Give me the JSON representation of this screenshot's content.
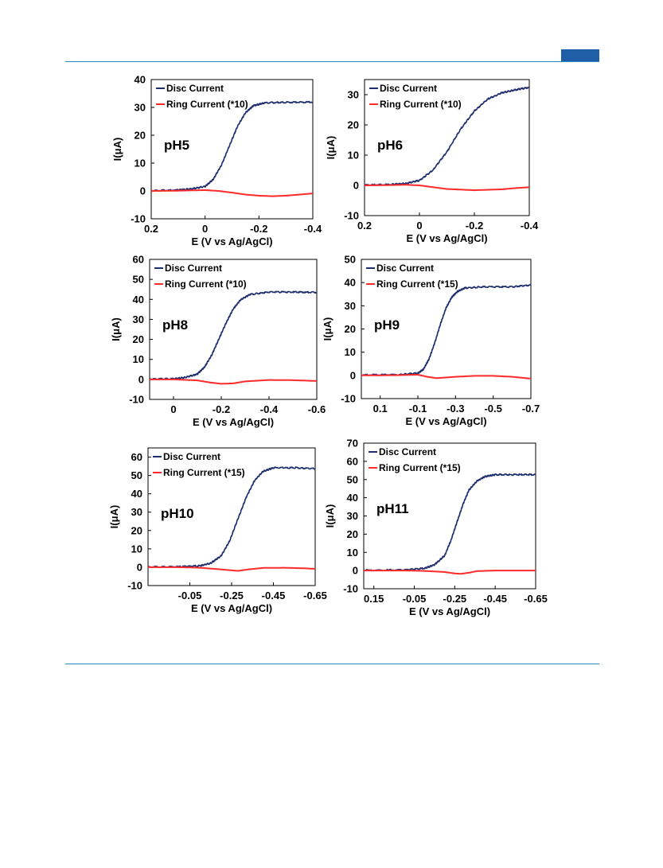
{
  "colors": {
    "rule": "#2e86c1",
    "accent": "#1f5fa8",
    "disc": "#1f2f6e",
    "ring": "#ff2a2a"
  },
  "chart_data": [
    {
      "type": "line",
      "panel_label": "pH5",
      "xlabel": "E (V vs Ag/AgCl)",
      "ylabel": "I(μA)",
      "xlim": [
        0.2,
        -0.4
      ],
      "ylim": [
        -10,
        40
      ],
      "xticks": [
        0.2,
        0,
        -0.2,
        -0.4
      ],
      "xticklabels": [
        "0.2",
        "0",
        "-0.2",
        "-0.4"
      ],
      "yticks": [
        -10,
        0,
        10,
        20,
        30,
        40
      ],
      "yticklabels": [
        "-10",
        "0",
        "10",
        "20",
        "30",
        "40"
      ],
      "legend": "top-left",
      "series": [
        {
          "name": "Disc Current",
          "color": "#1f2f6e",
          "x": [
            0.2,
            0.1,
            0.05,
            0.0,
            -0.03,
            -0.06,
            -0.09,
            -0.12,
            -0.15,
            -0.18,
            -0.22,
            -0.3,
            -0.4
          ],
          "y": [
            0,
            0.2,
            0.6,
            1.5,
            4,
            9,
            16,
            23,
            28,
            30.5,
            31.5,
            31.7,
            31.8
          ]
        },
        {
          "name": "Ring Current (*10)",
          "color": "#ff2a2a",
          "x": [
            0.2,
            0.1,
            0.0,
            -0.05,
            -0.1,
            -0.15,
            -0.2,
            -0.25,
            -0.3,
            -0.35,
            -0.4
          ],
          "y": [
            0,
            0.1,
            0.3,
            0.0,
            -0.6,
            -1.3,
            -1.7,
            -1.9,
            -1.7,
            -1.3,
            -0.9
          ]
        }
      ]
    },
    {
      "type": "line",
      "panel_label": "pH6",
      "xlabel": "E (V vs Ag/AgCl)",
      "ylabel": "I(μA)",
      "xlim": [
        0.2,
        -0.4
      ],
      "ylim": [
        -10,
        35
      ],
      "xticks": [
        0.2,
        0,
        -0.2,
        -0.4
      ],
      "xticklabels": [
        "0.2",
        "0",
        "-0.2",
        "-0.4"
      ],
      "yticks": [
        -10,
        0,
        10,
        20,
        30
      ],
      "yticklabels": [
        "-10",
        "0",
        "10",
        "20",
        "30"
      ],
      "legend": "top-left",
      "series": [
        {
          "name": "Disc Current",
          "color": "#1f2f6e",
          "x": [
            0.2,
            0.1,
            0.05,
            0.0,
            -0.05,
            -0.1,
            -0.15,
            -0.2,
            -0.25,
            -0.3,
            -0.35,
            -0.4
          ],
          "y": [
            0,
            0.2,
            0.5,
            1.5,
            5,
            11,
            18.5,
            24.5,
            28.5,
            30.5,
            31.5,
            32.3
          ]
        },
        {
          "name": "Ring Current (*10)",
          "color": "#ff2a2a",
          "x": [
            0.2,
            0.1,
            0.05,
            0.0,
            -0.05,
            -0.1,
            -0.2,
            -0.3,
            -0.35,
            -0.4
          ],
          "y": [
            0,
            0.1,
            0.2,
            0.0,
            -0.6,
            -1.2,
            -1.6,
            -1.3,
            -0.9,
            -0.6
          ]
        }
      ]
    },
    {
      "type": "line",
      "panel_label": "pH8",
      "xlabel": "E (V vs Ag/AgCl)",
      "ylabel": "I(μA)",
      "xlim": [
        0.1,
        -0.6
      ],
      "ylim": [
        -10,
        60
      ],
      "xticks": [
        0,
        -0.2,
        -0.4,
        -0.6
      ],
      "xticklabels": [
        "0",
        "-0.2",
        "-0.4",
        "-0.6"
      ],
      "yticks": [
        -10,
        0,
        10,
        20,
        30,
        40,
        50,
        60
      ],
      "yticklabels": [
        "-10",
        "0",
        "10",
        "20",
        "30",
        "40",
        "50",
        "60"
      ],
      "legend": "top-left",
      "series": [
        {
          "name": "Disc Current",
          "color": "#1f2f6e",
          "x": [
            0.1,
            0.0,
            -0.05,
            -0.1,
            -0.13,
            -0.16,
            -0.19,
            -0.22,
            -0.25,
            -0.28,
            -0.32,
            -0.4,
            -0.5,
            -0.6
          ],
          "y": [
            0,
            0.2,
            0.8,
            2.5,
            6,
            12,
            20,
            28,
            35,
            39.5,
            42.3,
            43.5,
            43.5,
            43.3
          ]
        },
        {
          "name": "Ring Current (*10)",
          "color": "#ff2a2a",
          "x": [
            0.1,
            0.0,
            -0.1,
            -0.15,
            -0.2,
            -0.25,
            -0.3,
            -0.4,
            -0.5,
            -0.6
          ],
          "y": [
            0,
            0,
            -0.5,
            -1.5,
            -2.2,
            -2.0,
            -1.0,
            -0.3,
            -0.4,
            -0.8
          ]
        }
      ]
    },
    {
      "type": "line",
      "panel_label": "pH9",
      "xlabel": "E (V vs Ag/AgCl)",
      "ylabel": "I(μA)",
      "xlim": [
        0.2,
        -0.7
      ],
      "ylim": [
        -10,
        50
      ],
      "xticks": [
        0.1,
        -0.1,
        -0.3,
        -0.5,
        -0.7
      ],
      "xticklabels": [
        "0.1",
        "-0.1",
        "-0.3",
        "-0.5",
        "-0.7"
      ],
      "yticks": [
        -10,
        0,
        10,
        20,
        30,
        40,
        50
      ],
      "yticklabels": [
        "-10",
        "0",
        "10",
        "20",
        "30",
        "40",
        "50"
      ],
      "legend": "top-left",
      "series": [
        {
          "name": "Disc Current",
          "color": "#1f2f6e",
          "x": [
            0.2,
            0.0,
            -0.1,
            -0.13,
            -0.16,
            -0.19,
            -0.22,
            -0.25,
            -0.28,
            -0.31,
            -0.35,
            -0.45,
            -0.6,
            -0.7
          ],
          "y": [
            0,
            0.2,
            0.8,
            2.5,
            7,
            14,
            22,
            29,
            33.5,
            36,
            37.5,
            38,
            38,
            38.8
          ]
        },
        {
          "name": "Ring Current (*15)",
          "color": "#ff2a2a",
          "x": [
            0.2,
            0.0,
            -0.1,
            -0.15,
            -0.2,
            -0.3,
            -0.4,
            -0.5,
            -0.6,
            -0.7
          ],
          "y": [
            0,
            0.1,
            0.3,
            -0.6,
            -1.2,
            -0.6,
            -0.2,
            -0.2,
            -0.6,
            -1.4
          ]
        }
      ]
    },
    {
      "type": "line",
      "panel_label": "pH10",
      "xlabel": "E (V vs Ag/AgCl)",
      "ylabel": "I(μA)",
      "xlim": [
        0.15,
        -0.65
      ],
      "ylim": [
        -10,
        65
      ],
      "xticks": [
        -0.05,
        -0.25,
        -0.45,
        -0.65
      ],
      "xticklabels": [
        "-0.05",
        "-0.25",
        "-0.45",
        "-0.65"
      ],
      "yticks": [
        -10,
        0,
        10,
        20,
        30,
        40,
        50,
        60
      ],
      "yticklabels": [
        "-10",
        "0",
        "10",
        "20",
        "30",
        "40",
        "50",
        "60"
      ],
      "legend": "top-left",
      "series": [
        {
          "name": "Disc Current",
          "color": "#1f2f6e",
          "x": [
            0.15,
            0.0,
            -0.1,
            -0.15,
            -0.2,
            -0.24,
            -0.28,
            -0.32,
            -0.36,
            -0.4,
            -0.45,
            -0.55,
            -0.65
          ],
          "y": [
            0,
            0.1,
            0.6,
            2,
            6,
            14,
            26,
            38,
            47,
            52,
            54,
            54,
            53.5
          ]
        },
        {
          "name": "Ring Current (*15)",
          "color": "#ff2a2a",
          "x": [
            0.15,
            0.0,
            -0.1,
            -0.2,
            -0.28,
            -0.33,
            -0.4,
            -0.5,
            -0.6,
            -0.65
          ],
          "y": [
            0,
            0,
            -0.3,
            -1.2,
            -2.0,
            -1.2,
            -0.4,
            -0.3,
            -0.6,
            -0.9
          ]
        }
      ]
    },
    {
      "type": "line",
      "panel_label": "pH11",
      "xlabel": "E (V vs Ag/AgCl)",
      "ylabel": "I(μA)",
      "xlim": [
        0.2,
        -0.65
      ],
      "ylim": [
        -10,
        70
      ],
      "xticks": [
        0.15,
        -0.05,
        -0.25,
        -0.45,
        -0.65
      ],
      "xticklabels": [
        "0.15",
        "-0.05",
        "-0.25",
        "-0.45",
        "-0.65"
      ],
      "yticks": [
        -10,
        0,
        10,
        20,
        30,
        40,
        50,
        60,
        70
      ],
      "yticklabels": [
        "-10",
        "0",
        "10",
        "20",
        "30",
        "40",
        "50",
        "60",
        "70"
      ],
      "legend": "top-left",
      "series": [
        {
          "name": "Disc Current",
          "color": "#1f2f6e",
          "x": [
            0.2,
            0.0,
            -0.1,
            -0.15,
            -0.2,
            -0.23,
            -0.26,
            -0.29,
            -0.32,
            -0.36,
            -0.4,
            -0.45,
            -0.55,
            -0.65
          ],
          "y": [
            0,
            0.2,
            1,
            3,
            8,
            16,
            26,
            36,
            44,
            49,
            51.5,
            52.5,
            52.5,
            52.5
          ]
        },
        {
          "name": "Ring Current (*15)",
          "color": "#ff2a2a",
          "x": [
            0.2,
            0.0,
            -0.1,
            -0.2,
            -0.25,
            -0.28,
            -0.32,
            -0.36,
            -0.45,
            -0.55,
            -0.65
          ],
          "y": [
            0,
            0,
            -0.2,
            -0.8,
            -1.6,
            -1.8,
            -1.2,
            -0.3,
            0,
            0,
            0
          ]
        }
      ]
    }
  ]
}
